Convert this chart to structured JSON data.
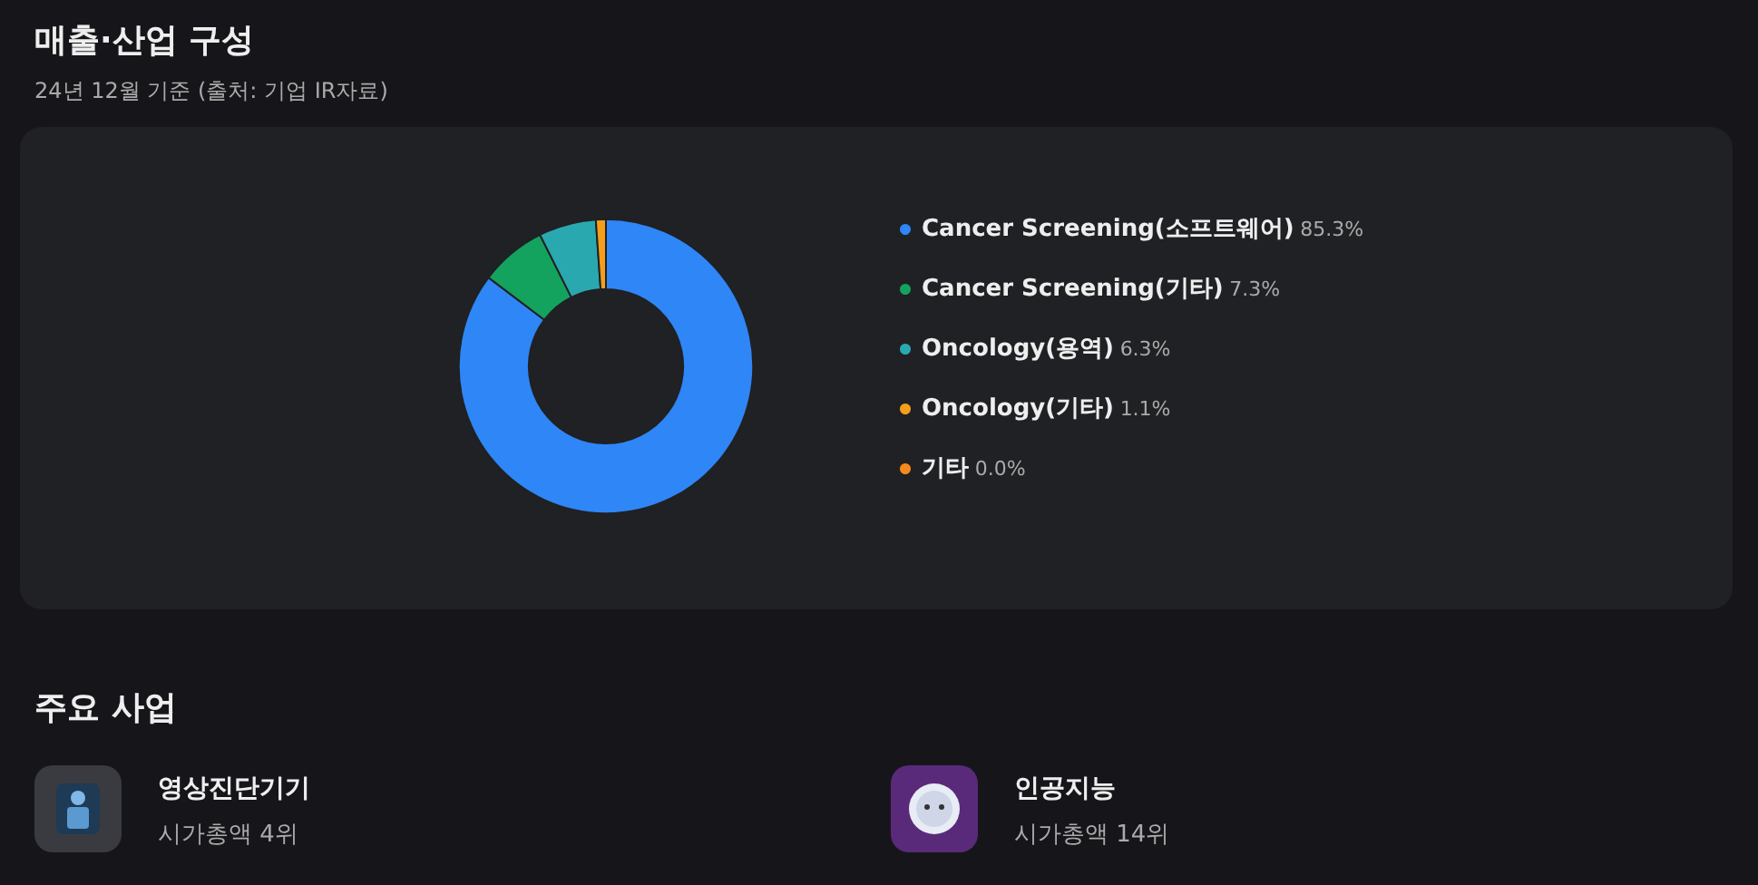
{
  "chart_data": {
    "type": "donut",
    "title": "매출·산업 구성",
    "subtitle": "24년 12월 기준 (출처: 기업 IR자료)",
    "categories": [
      "Cancer Screening(소프트웨어)",
      "Cancer Screening(기타)",
      "Oncology(용역)",
      "Oncology(기타)",
      "기타"
    ],
    "values": [
      85.3,
      7.3,
      6.3,
      1.1,
      0.0
    ],
    "value_labels": [
      "85.3%",
      "7.3%",
      "6.3%",
      "1.1%",
      "0.0%"
    ],
    "colors": [
      "#2f86f6",
      "#14a35f",
      "#2aa8b0",
      "#f59e1b",
      "#f58a1b"
    ],
    "legend": "right",
    "annotations": [
      "주요 사업",
      "영상진단기기",
      "시가총액 4위",
      "인공지능",
      "시가총액 14위"
    ]
  }
}
